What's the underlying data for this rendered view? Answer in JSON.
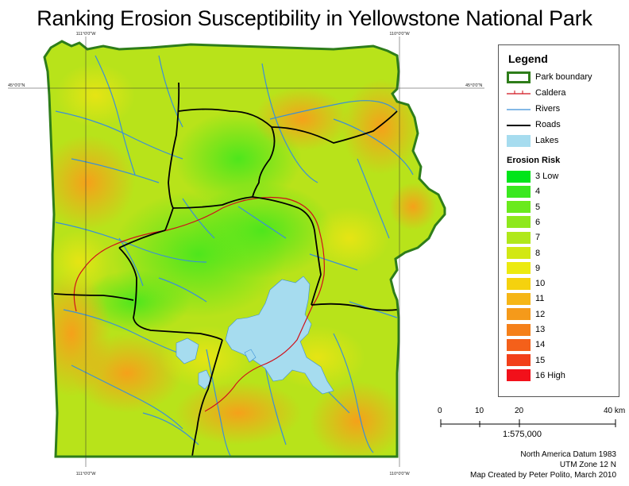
{
  "title": "Ranking Erosion Susceptibility in Yellowstone National Park",
  "grid_labels": {
    "top_left_lon": "111°0'0\"W",
    "top_right_lon": "110°0'0\"W",
    "bottom_left_lon": "111°0'0\"W",
    "bottom_right_lon": "110°0'0\"W",
    "left_lat": "45°0'0\"N",
    "right_lat": "45°0'0\"N"
  },
  "legend": {
    "title": "Legend",
    "items": [
      {
        "label": "Park boundary",
        "symbol": "boundary",
        "color": "#2e7d1a"
      },
      {
        "label": "Caldera",
        "symbol": "caldera",
        "color": "#d0101a"
      },
      {
        "label": "Rivers",
        "symbol": "river",
        "color": "#3a8fd8"
      },
      {
        "label": "Roads",
        "symbol": "road",
        "color": "#000000"
      },
      {
        "label": "Lakes",
        "symbol": "lake",
        "color": "#a6dcef"
      }
    ],
    "erosion_title": "Erosion Risk",
    "erosion_classes": [
      {
        "label": "3 Low",
        "color": "#00e51a"
      },
      {
        "label": "4",
        "color": "#3ae81f"
      },
      {
        "label": "5",
        "color": "#6aea1c"
      },
      {
        "label": "6",
        "color": "#8ee81c"
      },
      {
        "label": "7",
        "color": "#b0e81a"
      },
      {
        "label": "8",
        "color": "#d2e813"
      },
      {
        "label": "9",
        "color": "#ecea10"
      },
      {
        "label": "10",
        "color": "#f5d20e"
      },
      {
        "label": "11",
        "color": "#f6b616"
      },
      {
        "label": "12",
        "color": "#f59a1a"
      },
      {
        "label": "13",
        "color": "#f5801a"
      },
      {
        "label": "14",
        "color": "#f4601a"
      },
      {
        "label": "15",
        "color": "#f2401a"
      },
      {
        "label": "16 High",
        "color": "#f2101a"
      }
    ]
  },
  "scale_bar": {
    "ticks": [
      "0",
      "10",
      "20",
      "40 km"
    ],
    "ratio": "1:575,000"
  },
  "credits": {
    "datum": "North America Datum 1983",
    "zone": "UTM Zone 12 N",
    "author": "Map Created by Peter Polito, March 2010"
  }
}
